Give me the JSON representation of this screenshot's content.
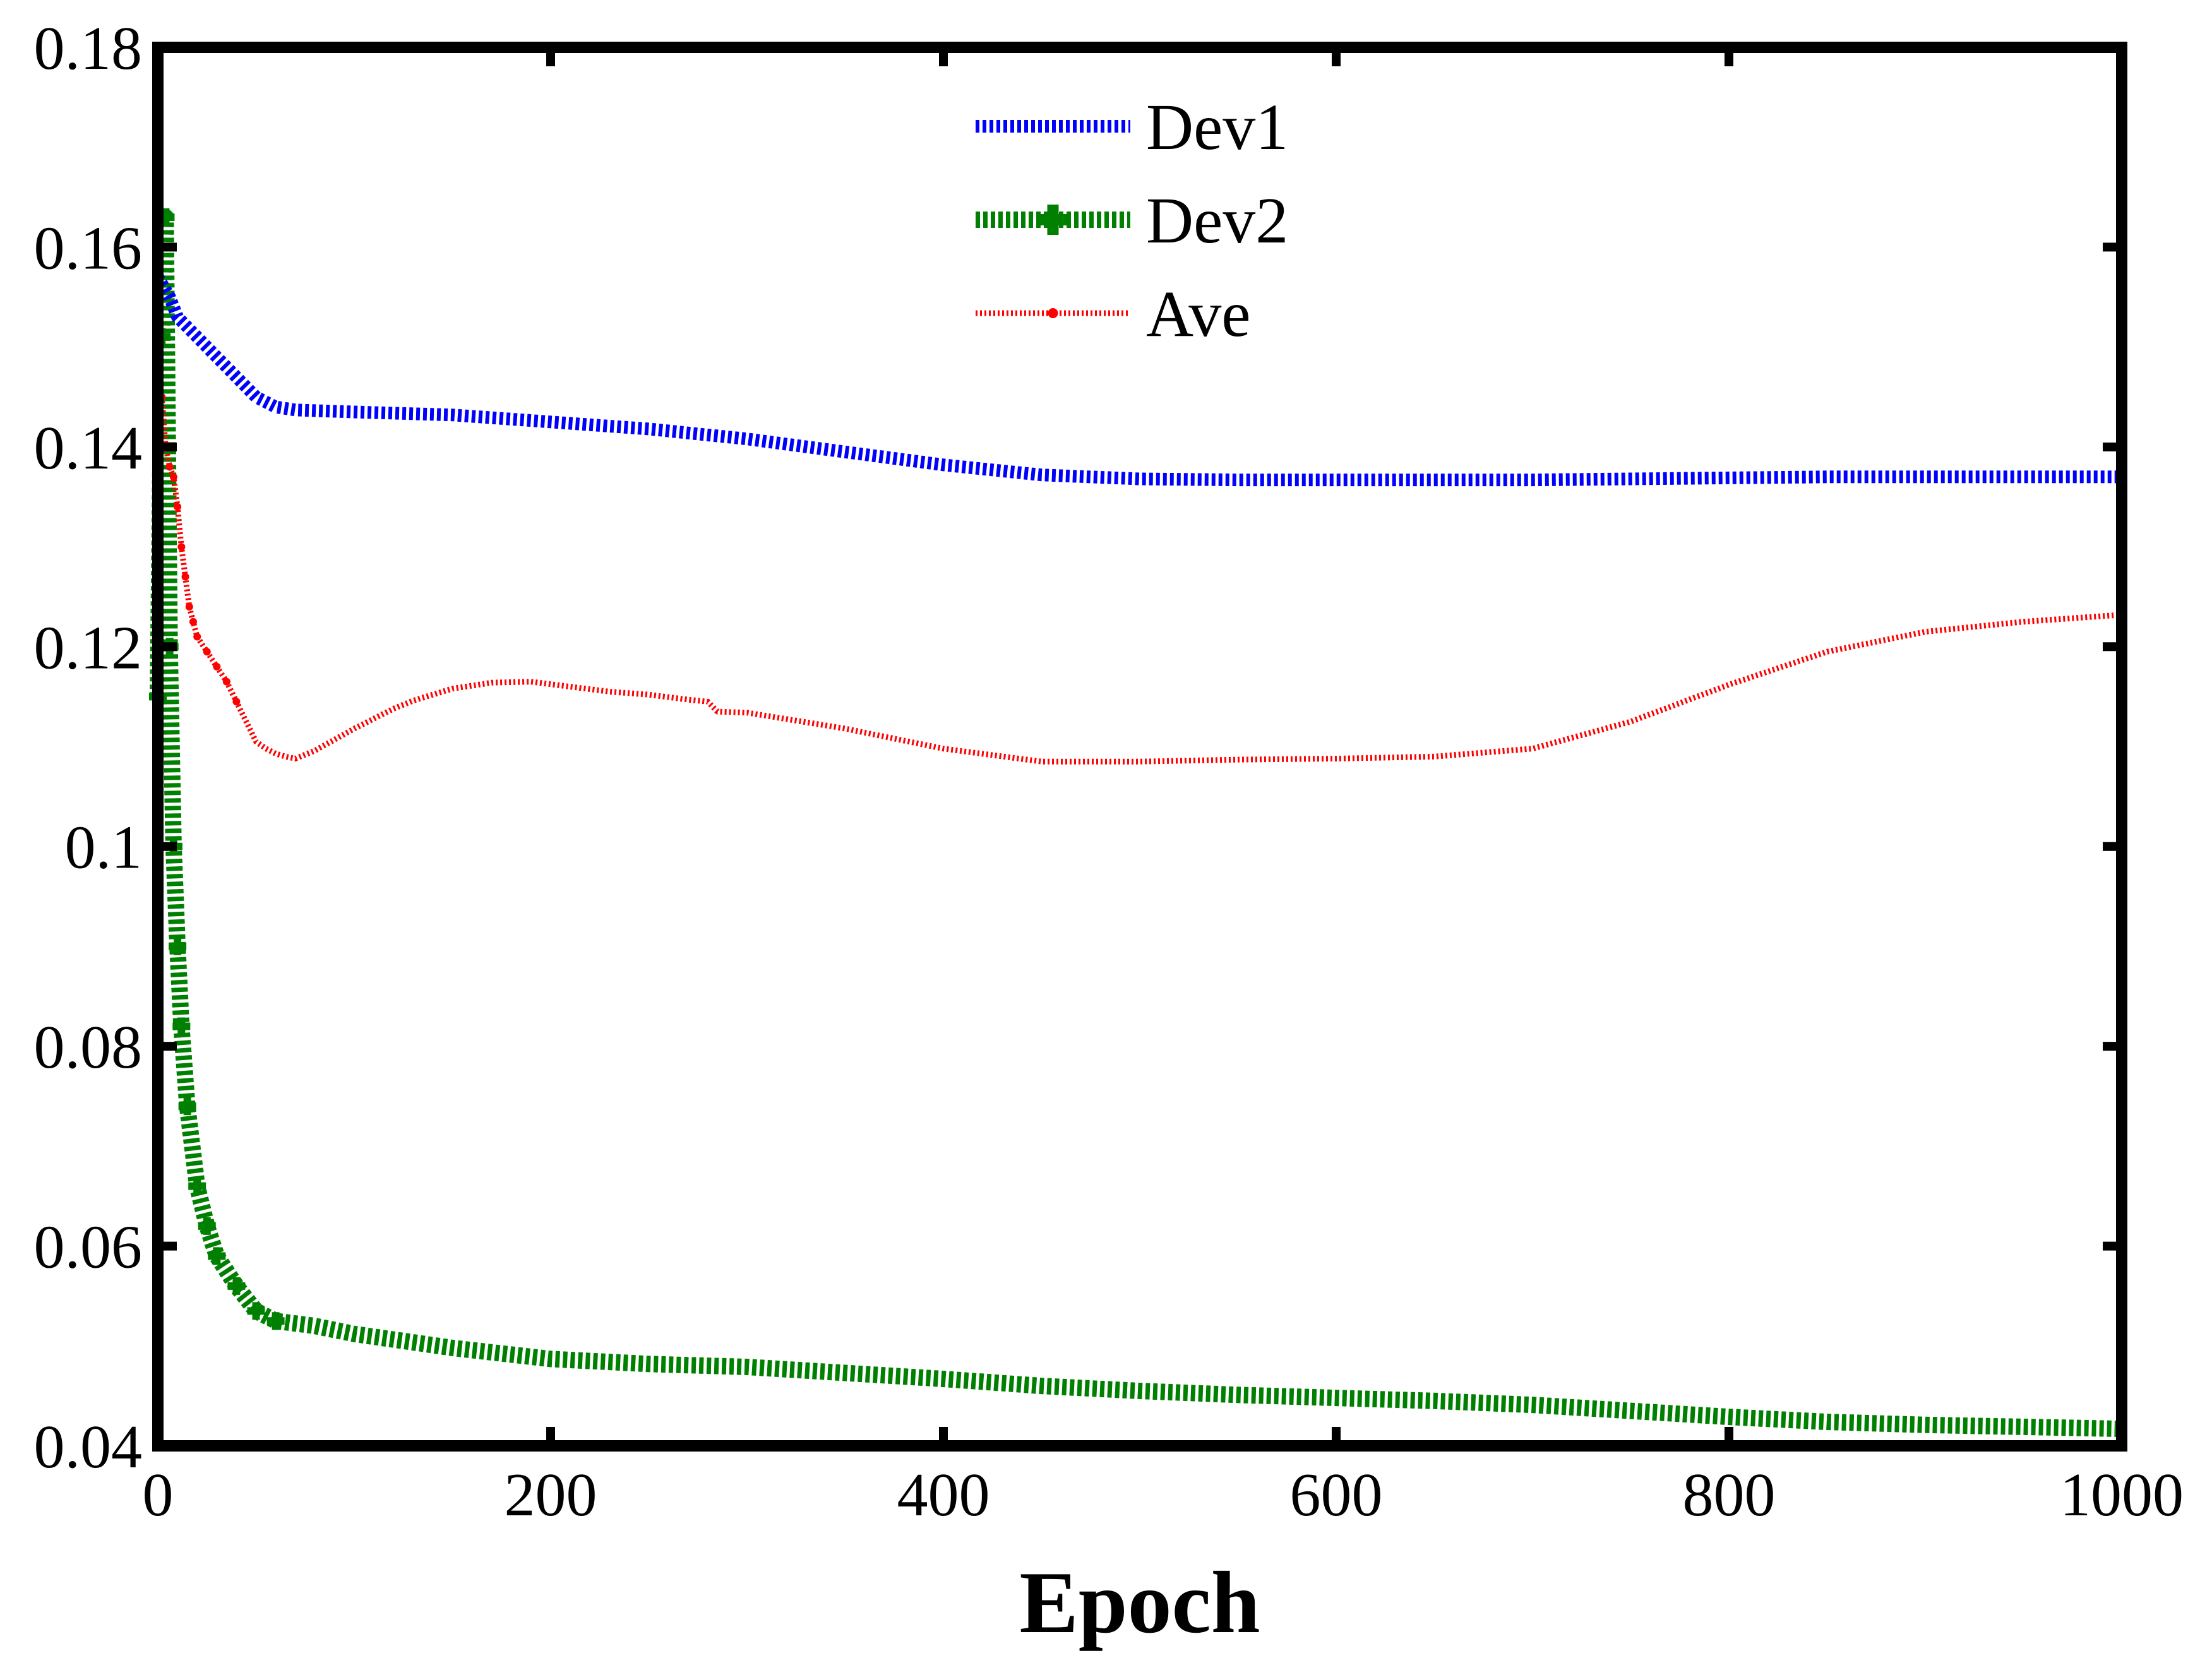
{
  "chart_data": {
    "type": "line",
    "title": "",
    "xlabel": "Epoch",
    "ylabel": "",
    "xlim": [
      0,
      1000
    ],
    "ylim": [
      0.04,
      0.18
    ],
    "x_ticks": [
      0,
      200,
      400,
      600,
      800,
      1000
    ],
    "x_tick_labels": [
      "0",
      "200",
      "400",
      "600",
      "800",
      "1000"
    ],
    "y_ticks": [
      0.04,
      0.06,
      0.08,
      0.1,
      0.12,
      0.14,
      0.16,
      0.18
    ],
    "y_tick_labels": [
      "0.04",
      "0.06",
      "0.08",
      "0.1",
      "0.12",
      "0.14",
      "0.16",
      "0.18"
    ],
    "grid": false,
    "legend_position": "top-center",
    "series": [
      {
        "name": "Dev1",
        "color": "#0000ff",
        "style": "dotted-thick",
        "marker": "none",
        "x": [
          0,
          3,
          6,
          10,
          20,
          30,
          40,
          50,
          60,
          70,
          100,
          150,
          200,
          250,
          300,
          350,
          400,
          450,
          500,
          550,
          600,
          650,
          700,
          750,
          800,
          850,
          900,
          950,
          1000
        ],
        "y": [
          0.157,
          0.156,
          0.155,
          0.153,
          0.151,
          0.149,
          0.147,
          0.145,
          0.144,
          0.1437,
          0.1435,
          0.1432,
          0.1425,
          0.1418,
          0.1408,
          0.1395,
          0.1382,
          0.1372,
          0.1368,
          0.1367,
          0.1367,
          0.1367,
          0.1367,
          0.1368,
          0.1369,
          0.137,
          0.137,
          0.137,
          0.137
        ]
      },
      {
        "name": "Dev2",
        "color": "#008000",
        "style": "dotted-thick",
        "marker": "plus",
        "x": [
          0,
          2,
          4,
          6,
          8,
          10,
          12,
          15,
          20,
          25,
          30,
          40,
          50,
          60,
          80,
          100,
          150,
          200,
          250,
          300,
          350,
          400,
          450,
          500,
          550,
          600,
          650,
          700,
          750,
          800,
          850,
          900,
          950,
          1000
        ],
        "y": [
          0.115,
          0.151,
          0.163,
          0.12,
          0.1,
          0.09,
          0.082,
          0.074,
          0.066,
          0.062,
          0.059,
          0.056,
          0.0535,
          0.0525,
          0.052,
          0.0512,
          0.0498,
          0.0487,
          0.0482,
          0.0479,
          0.0473,
          0.0467,
          0.046,
          0.0455,
          0.0451,
          0.0448,
          0.0445,
          0.0441,
          0.0435,
          0.0429,
          0.0424,
          0.0421,
          0.0419,
          0.0417
        ]
      },
      {
        "name": "Ave",
        "color": "#ff0000",
        "style": "dotted-thin",
        "marker": "dot",
        "x": [
          2,
          4,
          6,
          8,
          10,
          12,
          14,
          16,
          18,
          20,
          25,
          30,
          35,
          40,
          45,
          50,
          55,
          60,
          65,
          70,
          80,
          90,
          100,
          110,
          120,
          125,
          130,
          150,
          170,
          190,
          210,
          230,
          250,
          270,
          280,
          285,
          300,
          350,
          400,
          450,
          500,
          550,
          600,
          650,
          700,
          750,
          800,
          850,
          900,
          950,
          1000
        ],
        "y": [
          0.145,
          0.14,
          0.138,
          0.137,
          0.134,
          0.13,
          0.127,
          0.124,
          0.1225,
          0.121,
          0.1195,
          0.118,
          0.1165,
          0.1145,
          0.1125,
          0.1105,
          0.1098,
          0.1093,
          0.109,
          0.1088,
          0.1096,
          0.1107,
          0.1118,
          0.1128,
          0.1138,
          0.1142,
          0.1146,
          0.1158,
          0.1164,
          0.1165,
          0.116,
          0.1155,
          0.1152,
          0.1147,
          0.1145,
          0.1135,
          0.1134,
          0.1118,
          0.1098,
          0.1085,
          0.1085,
          0.1087,
          0.1088,
          0.109,
          0.1098,
          0.1125,
          0.1162,
          0.1195,
          0.1215,
          0.1225,
          0.1232
        ]
      }
    ]
  }
}
